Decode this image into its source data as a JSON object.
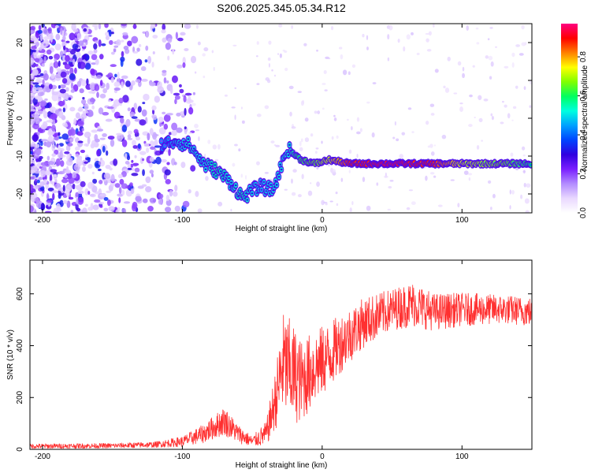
{
  "figure": {
    "title": "S206.2025.345.05.34.R12"
  },
  "chart_data": [
    {
      "type": "heatmap",
      "xlabel": "Height of straight line (km)",
      "ylabel": "Frequency (Hz)",
      "xlim": [
        -209,
        150
      ],
      "ylim": [
        -25,
        25
      ],
      "x_ticks": [
        -200,
        -100,
        0,
        100
      ],
      "y_ticks": [
        -20,
        -10,
        0,
        10,
        20
      ],
      "colorbar": {
        "label": "Normalized spectral amplitude",
        "range": [
          0,
          0.97
        ],
        "ticks": [
          0.0,
          0.2,
          0.4,
          0.6,
          0.8
        ],
        "colors": [
          "#ffffff",
          "#e9d8ff",
          "#b38cff",
          "#7a1fff",
          "#3000e0",
          "#0044ff",
          "#00a0ff",
          "#00ffe0",
          "#00ff60",
          "#80ff00",
          "#ffff00",
          "#ff8000",
          "#ff0000",
          "#ff0080"
        ]
      },
      "ridge": [
        {
          "x": -115,
          "f": -7,
          "a": 0.2
        },
        {
          "x": -105,
          "f": -6,
          "a": 0.25
        },
        {
          "x": -95,
          "f": -7,
          "a": 0.3
        },
        {
          "x": -85,
          "f": -12,
          "a": 0.3
        },
        {
          "x": -75,
          "f": -14,
          "a": 0.35
        },
        {
          "x": -65,
          "f": -17,
          "a": 0.3
        },
        {
          "x": -57,
          "f": -21,
          "a": 0.35
        },
        {
          "x": -45,
          "f": -18,
          "a": 0.25
        },
        {
          "x": -35,
          "f": -19,
          "a": 0.3
        },
        {
          "x": -25,
          "f": -8,
          "a": 0.3
        },
        {
          "x": -15,
          "f": -11,
          "a": 0.45
        },
        {
          "x": -5,
          "f": -12,
          "a": 0.5
        },
        {
          "x": 5,
          "f": -11,
          "a": 0.6
        },
        {
          "x": 20,
          "f": -12,
          "a": 0.8
        },
        {
          "x": 50,
          "f": -12,
          "a": 0.85
        },
        {
          "x": 80,
          "f": -12,
          "a": 0.8
        },
        {
          "x": 100,
          "f": -12,
          "a": 0.6
        },
        {
          "x": 130,
          "f": -12,
          "a": 0.5
        },
        {
          "x": 150,
          "f": -12,
          "a": 0.4
        }
      ]
    },
    {
      "type": "line",
      "xlabel": "Height of straight line (km)",
      "ylabel": "SNR (10 * v/v)",
      "xlim": [
        -209,
        150
      ],
      "ylim": [
        0,
        730
      ],
      "x_ticks": [
        -200,
        -100,
        0,
        100
      ],
      "y_ticks": [
        0,
        200,
        400,
        600
      ],
      "series": [
        {
          "color": "#ff3030",
          "envelope": [
            {
              "x": -209,
              "y": 12,
              "spread": 12
            },
            {
              "x": -150,
              "y": 14,
              "spread": 12
            },
            {
              "x": -120,
              "y": 18,
              "spread": 14
            },
            {
              "x": -100,
              "y": 30,
              "spread": 25
            },
            {
              "x": -85,
              "y": 60,
              "spread": 45
            },
            {
              "x": -70,
              "y": 110,
              "spread": 70
            },
            {
              "x": -60,
              "y": 60,
              "spread": 45
            },
            {
              "x": -50,
              "y": 30,
              "spread": 25
            },
            {
              "x": -40,
              "y": 60,
              "spread": 60
            },
            {
              "x": -33,
              "y": 200,
              "spread": 150
            },
            {
              "x": -28,
              "y": 330,
              "spread": 250
            },
            {
              "x": -22,
              "y": 300,
              "spread": 250
            },
            {
              "x": -15,
              "y": 260,
              "spread": 200
            },
            {
              "x": -5,
              "y": 320,
              "spread": 180
            },
            {
              "x": 5,
              "y": 360,
              "spread": 160
            },
            {
              "x": 15,
              "y": 420,
              "spread": 140
            },
            {
              "x": 30,
              "y": 490,
              "spread": 120
            },
            {
              "x": 50,
              "y": 540,
              "spread": 100
            },
            {
              "x": 65,
              "y": 560,
              "spread": 110
            },
            {
              "x": 80,
              "y": 530,
              "spread": 90
            },
            {
              "x": 100,
              "y": 540,
              "spread": 80
            },
            {
              "x": 130,
              "y": 540,
              "spread": 70
            },
            {
              "x": 150,
              "y": 530,
              "spread": 70
            }
          ]
        }
      ]
    }
  ]
}
